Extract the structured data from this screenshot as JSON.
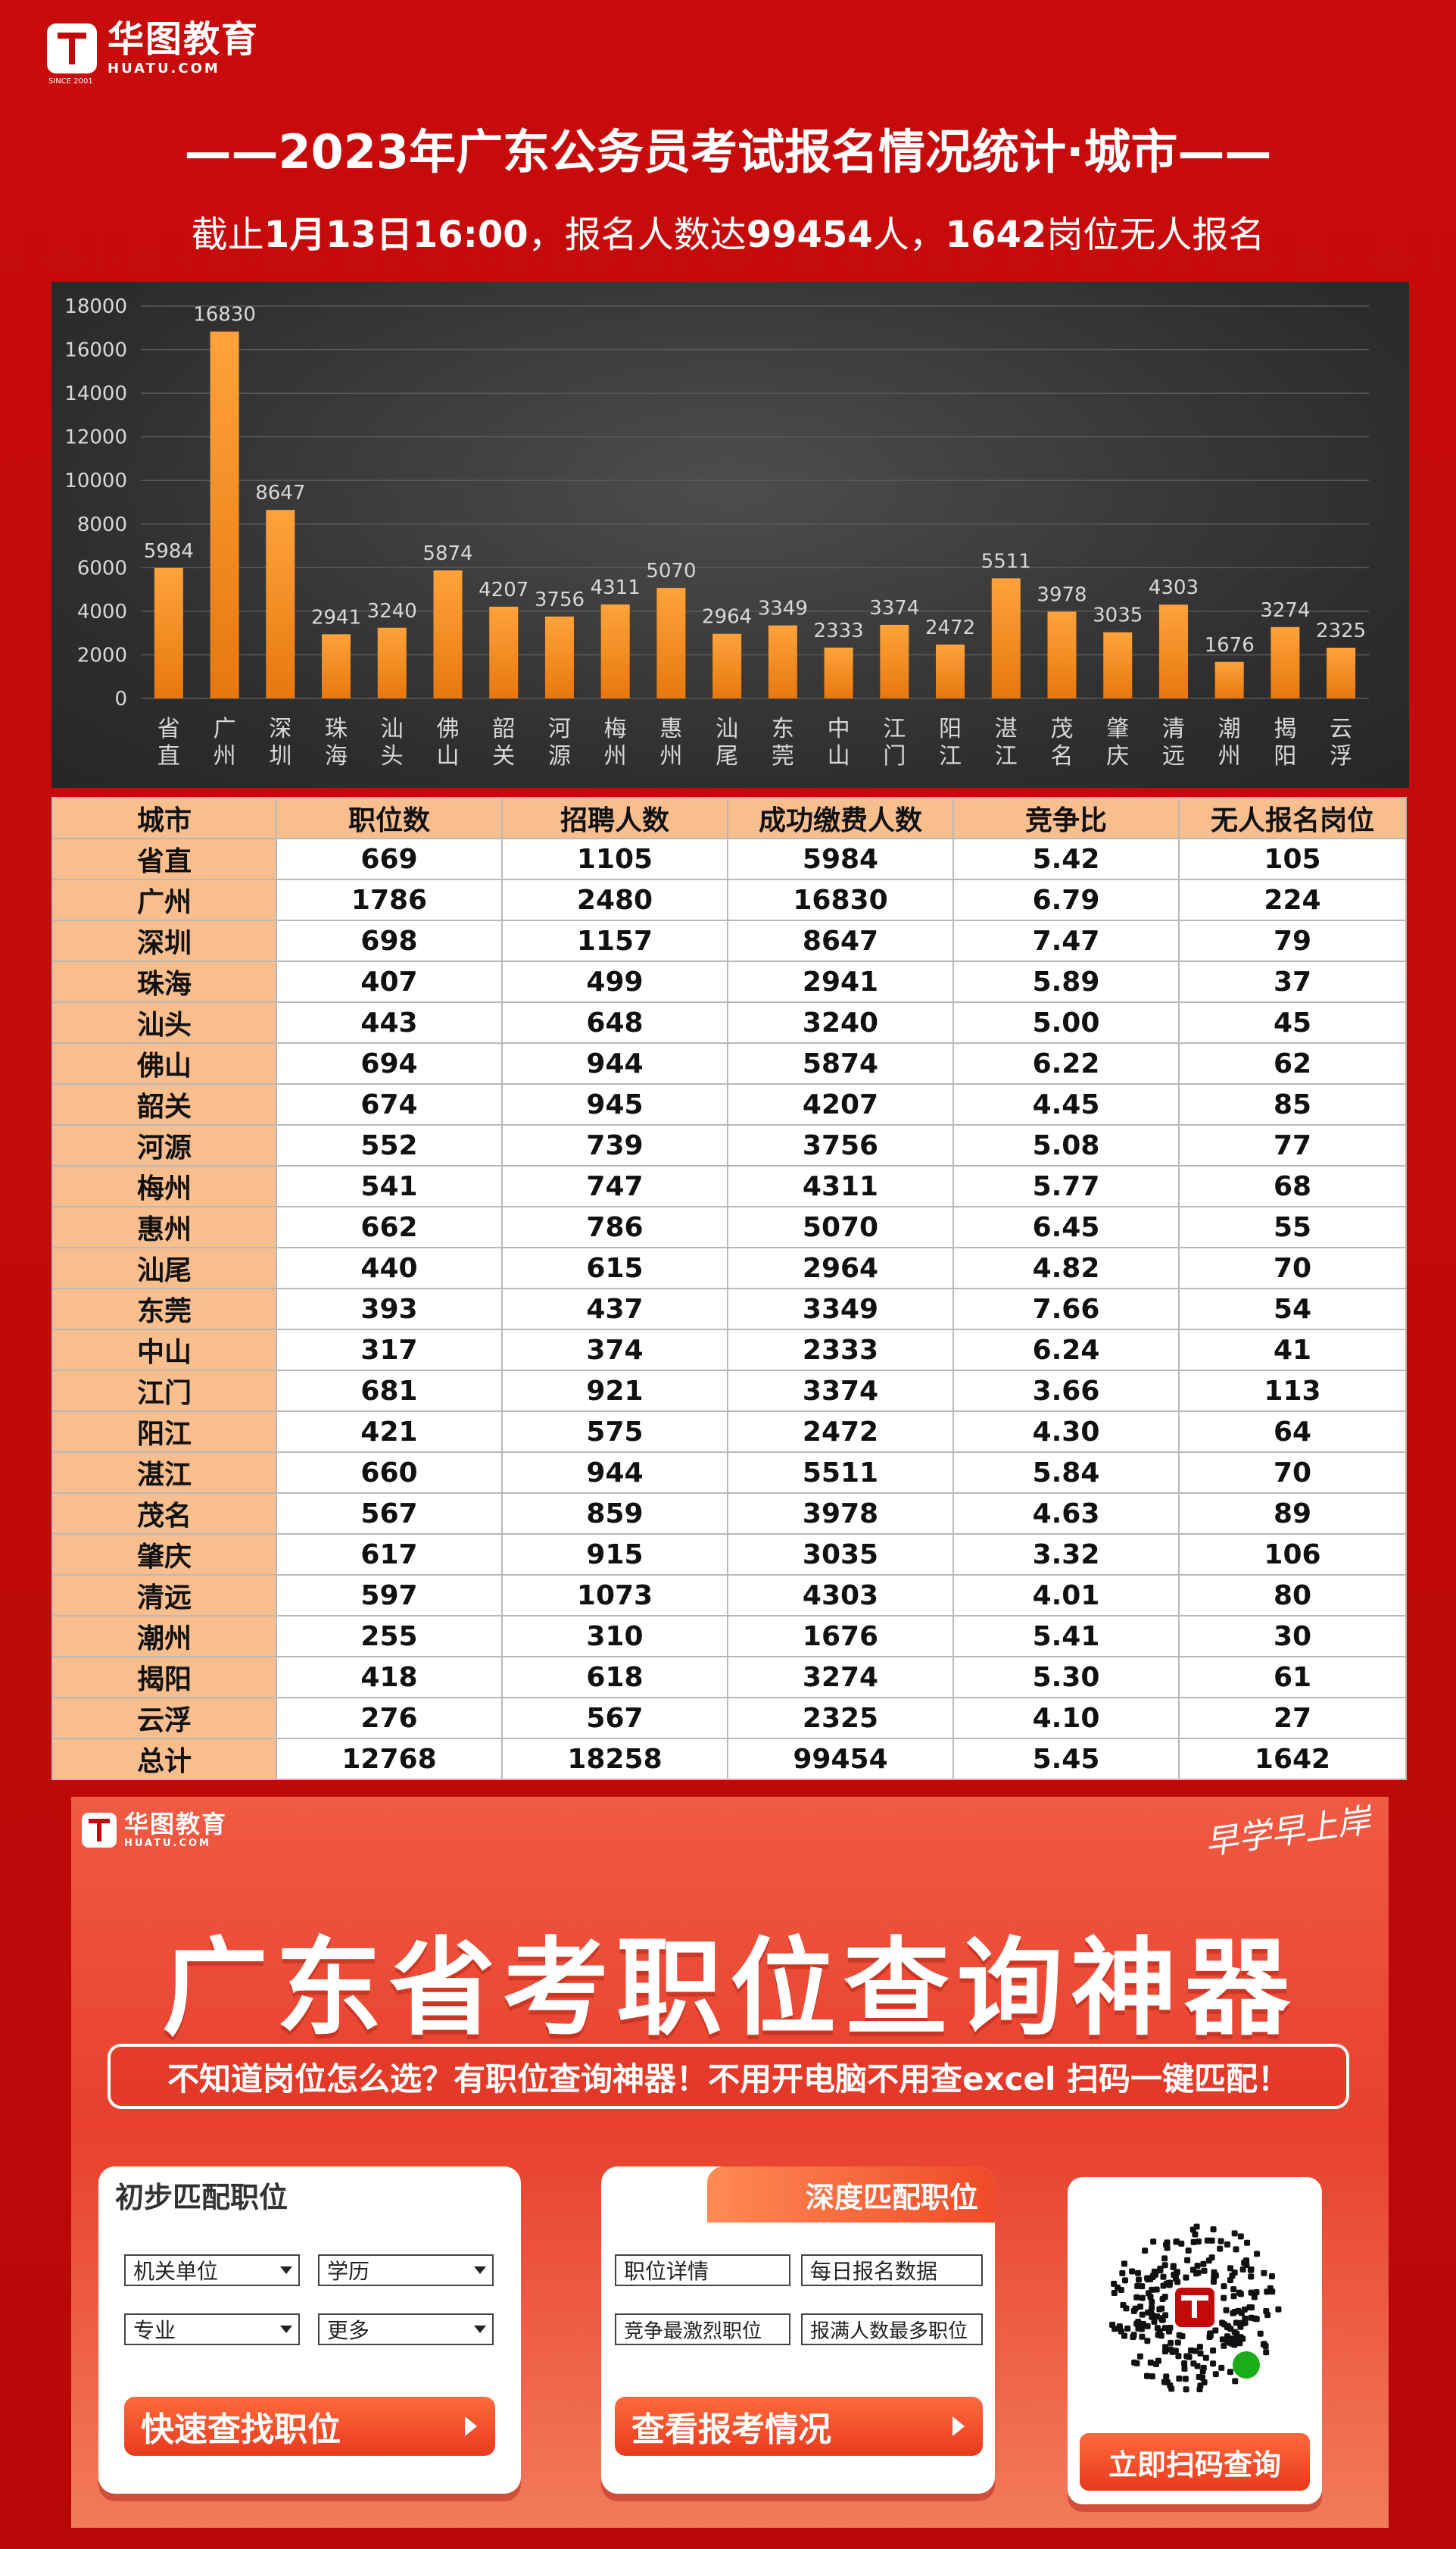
{
  "header": {
    "brand_cn": "华图教育",
    "brand_en": "HUATU.COM",
    "since": "SINCE 2001"
  },
  "title": "——2023年广东公务员考试报名情况统计·城市——",
  "subtitle": {
    "prefix": "截止",
    "date": "1月13日16:00",
    "middle": "，报名人数达",
    "total": "99454",
    "unit1": "人，",
    "no_apply": "1642",
    "suffix": "岗位无人报名"
  },
  "chart_data": {
    "type": "bar",
    "categories": [
      "省直",
      "广州",
      "深圳",
      "珠海",
      "汕头",
      "佛山",
      "韶关",
      "河源",
      "梅州",
      "惠州",
      "汕尾",
      "东莞",
      "中山",
      "江门",
      "阳江",
      "湛江",
      "茂名",
      "肇庆",
      "清远",
      "潮州",
      "揭阳",
      "云浮"
    ],
    "values": [
      5984,
      16830,
      8647,
      2941,
      3240,
      5874,
      4207,
      3756,
      4311,
      5070,
      2964,
      3349,
      2333,
      3374,
      2472,
      5511,
      3978,
      3035,
      4303,
      1676,
      3274,
      2325
    ],
    "yticks": [
      0,
      2000,
      4000,
      6000,
      8000,
      10000,
      12000,
      14000,
      16000,
      18000
    ],
    "ylim": [
      0,
      18000
    ],
    "grid": true,
    "colors": {
      "bar_top": "#ffa33a",
      "bar_bottom": "#e7780f",
      "axis_text": "#d8d8d8",
      "grid": "#5a5a5a"
    }
  },
  "table": {
    "headers": [
      "城市",
      "职位数",
      "招聘人数",
      "成功缴费人数",
      "竞争比",
      "无人报名岗位"
    ],
    "rows": [
      [
        "省直",
        "669",
        "1105",
        "5984",
        "5.42",
        "105"
      ],
      [
        "广州",
        "1786",
        "2480",
        "16830",
        "6.79",
        "224"
      ],
      [
        "深圳",
        "698",
        "1157",
        "8647",
        "7.47",
        "79"
      ],
      [
        "珠海",
        "407",
        "499",
        "2941",
        "5.89",
        "37"
      ],
      [
        "汕头",
        "443",
        "648",
        "3240",
        "5.00",
        "45"
      ],
      [
        "佛山",
        "694",
        "944",
        "5874",
        "6.22",
        "62"
      ],
      [
        "韶关",
        "674",
        "945",
        "4207",
        "4.45",
        "85"
      ],
      [
        "河源",
        "552",
        "739",
        "3756",
        "5.08",
        "77"
      ],
      [
        "梅州",
        "541",
        "747",
        "4311",
        "5.77",
        "68"
      ],
      [
        "惠州",
        "662",
        "786",
        "5070",
        "6.45",
        "55"
      ],
      [
        "汕尾",
        "440",
        "615",
        "2964",
        "4.82",
        "70"
      ],
      [
        "东莞",
        "393",
        "437",
        "3349",
        "7.66",
        "54"
      ],
      [
        "中山",
        "317",
        "374",
        "2333",
        "6.24",
        "41"
      ],
      [
        "江门",
        "681",
        "921",
        "3374",
        "3.66",
        "113"
      ],
      [
        "阳江",
        "421",
        "575",
        "2472",
        "4.30",
        "64"
      ],
      [
        "湛江",
        "660",
        "944",
        "5511",
        "5.84",
        "70"
      ],
      [
        "茂名",
        "567",
        "859",
        "3978",
        "4.63",
        "89"
      ],
      [
        "肇庆",
        "617",
        "915",
        "3035",
        "3.32",
        "106"
      ],
      [
        "清远",
        "597",
        "1073",
        "4303",
        "4.01",
        "80"
      ],
      [
        "潮州",
        "255",
        "310",
        "1676",
        "5.41",
        "30"
      ],
      [
        "揭阳",
        "418",
        "618",
        "3274",
        "5.30",
        "61"
      ],
      [
        "云浮",
        "276",
        "567",
        "2325",
        "4.10",
        "27"
      ],
      [
        "总计",
        "12768",
        "18258",
        "99454",
        "5.45",
        "1642"
      ]
    ]
  },
  "banner": {
    "slogan": "早学早上岸",
    "title": "广东省考职位查询神器",
    "tagline": "不知道岗位怎么选？有职位查询神器！不用开电脑不用查excel 扫码一键匹配！",
    "card1": {
      "title": "初步匹配职位",
      "selects": [
        "机关单位",
        "学历",
        "专业",
        "更多"
      ],
      "button": "快速查找职位"
    },
    "card2": {
      "title": "深度匹配职位",
      "options": [
        "职位详情",
        "每日报名数据",
        "竞争最激烈职位",
        "报满人数最多职位"
      ],
      "button": "查看报考情况"
    },
    "qr": {
      "button": "立即扫码查询"
    }
  }
}
